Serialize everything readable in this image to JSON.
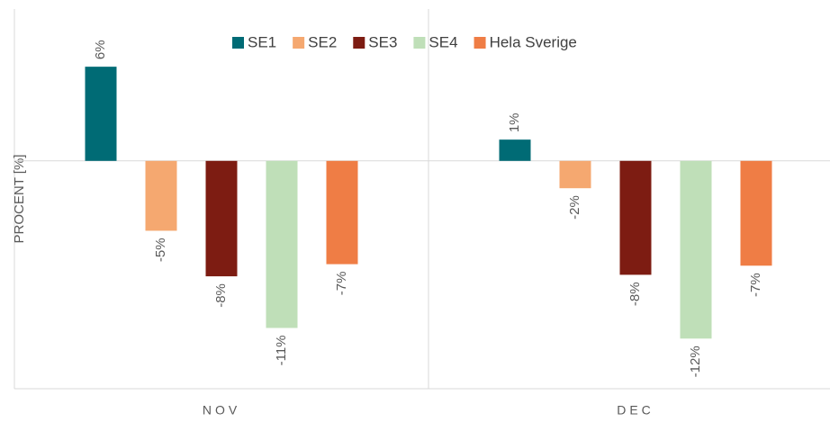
{
  "chart_data": {
    "type": "bar",
    "y_label": "PROCENT [%]",
    "categories": [
      "NOV",
      "DEC"
    ],
    "series": [
      {
        "name": "SE1",
        "color": "#006b75",
        "values": [
          6.2,
          1.4
        ],
        "value_labels": [
          "6%",
          "1%"
        ]
      },
      {
        "name": "SE2",
        "color": "#f5a870",
        "values": [
          -4.6,
          -1.8
        ],
        "value_labels": [
          "-5%",
          "-2%"
        ]
      },
      {
        "name": "SE3",
        "color": "#7d1c12",
        "values": [
          -7.6,
          -7.5
        ],
        "value_labels": [
          "-8%",
          "-8%"
        ]
      },
      {
        "name": "SE4",
        "color": "#bfdfb8",
        "values": [
          -11.0,
          -11.7
        ],
        "value_labels": [
          "-11%",
          "-12%"
        ]
      },
      {
        "name": "Hela Sverige",
        "color": "#ef7d45",
        "values": [
          -6.8,
          -6.9
        ],
        "value_labels": [
          "-7%",
          "-7%"
        ]
      }
    ],
    "ylim": [
      -15,
      10
    ],
    "legend": "top"
  }
}
